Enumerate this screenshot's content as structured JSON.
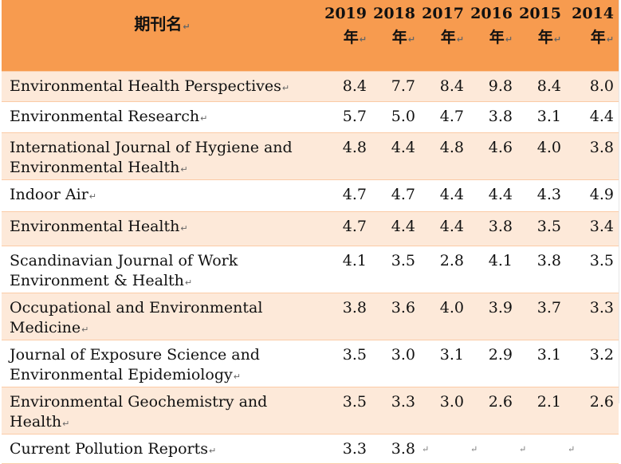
{
  "header": {
    "name_label": "期刊名",
    "year_unit": "年",
    "years": [
      "2019",
      "2018",
      "2017",
      "2016",
      "2015",
      "2014"
    ]
  },
  "para_mark": "↵",
  "rows": [
    {
      "name": "Environmental Health Perspectives",
      "values": [
        "8.4",
        "7.7",
        "8.4",
        "9.8",
        "8.4",
        "8.0"
      ]
    },
    {
      "name": "Environmental Research",
      "values": [
        "5.7",
        "5.0",
        "4.7",
        "3.8",
        "3.1",
        "4.4"
      ]
    },
    {
      "name": "International Journal of Hygiene and Environmental Health",
      "values": [
        "4.8",
        "4.4",
        "4.8",
        "4.6",
        "4.0",
        "3.8"
      ]
    },
    {
      "name": "Indoor Air",
      "values": [
        "4.7",
        "4.7",
        "4.4",
        "4.4",
        "4.3",
        "4.9"
      ]
    },
    {
      "name": "Environmental Health",
      "values": [
        "4.7",
        "4.4",
        "4.4",
        "3.8",
        "3.5",
        "3.4"
      ]
    },
    {
      "name": "Scandinavian Journal of  Work Environment & Health",
      "values": [
        "4.1",
        "3.5",
        "2.8",
        "4.1",
        "3.8",
        "3.5"
      ]
    },
    {
      "name": "Occupational and Environmental Medicine",
      "values": [
        "3.8",
        "3.6",
        "4.0",
        "3.9",
        "3.7",
        "3.3"
      ]
    },
    {
      "name": "Journal of Exposure Science and Environmental Epidemiology",
      "values": [
        "3.5",
        "3.0",
        "3.1",
        "2.9",
        "3.1",
        "3.2"
      ]
    },
    {
      "name": "Environmental Geochemistry and Health",
      "values": [
        "3.5",
        "3.3",
        "3.0",
        "2.6",
        "2.1",
        "2.6"
      ]
    },
    {
      "name": "Current Pollution Reports",
      "values": [
        "3.3",
        "3.8",
        "",
        "",
        "",
        ""
      ]
    }
  ]
}
